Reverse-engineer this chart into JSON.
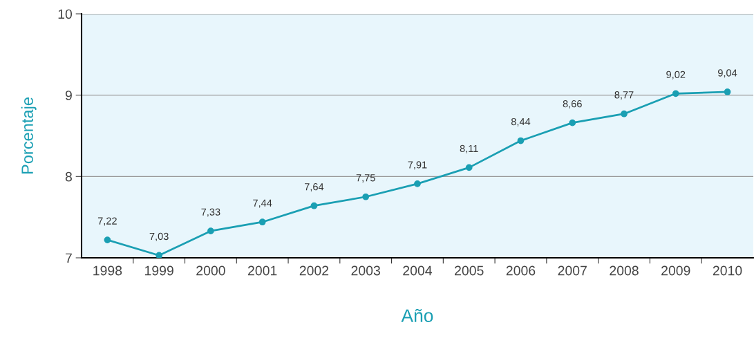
{
  "chart_data": {
    "type": "line",
    "xlabel": "Año",
    "ylabel": "Porcentaje",
    "categories": [
      "1998",
      "1999",
      "2000",
      "2001",
      "2002",
      "2003",
      "2004",
      "2005",
      "2006",
      "2007",
      "2008",
      "2009",
      "2010"
    ],
    "series": [
      {
        "color": "#1a9fb3",
        "values": [
          7.22,
          7.03,
          7.33,
          7.44,
          7.64,
          7.75,
          7.91,
          8.11,
          8.44,
          8.66,
          8.77,
          9.02,
          9.04
        ],
        "value_labels": [
          "7,22",
          "7,03",
          "7,33",
          "7,44",
          "7,64",
          "7,75",
          "7,91",
          "8,11",
          "8,44",
          "8,66",
          "8,77",
          "9,02",
          "9,04"
        ]
      }
    ],
    "ylim": [
      7,
      10
    ],
    "yticks": [
      7,
      8,
      9,
      10
    ],
    "grid": "y",
    "marker": "circle",
    "line_style": "solid",
    "legend": false
  }
}
